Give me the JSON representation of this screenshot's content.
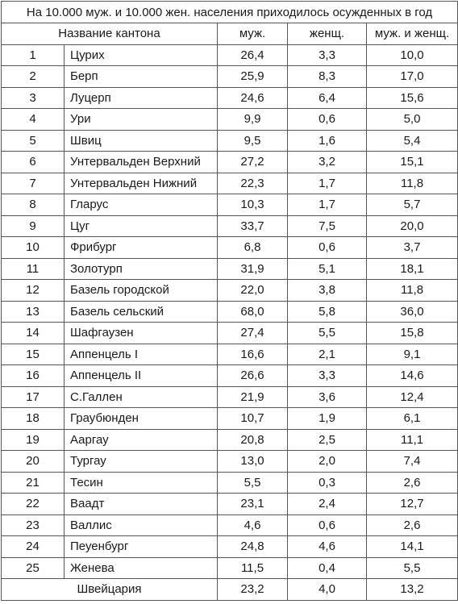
{
  "caption": "На 10.000 муж. и 10.000 жен. населения приходилось осужденных в год",
  "headers": {
    "canton": "Название кантона",
    "men": "муж.",
    "women": "женщ.",
    "both": "муж. и женщ."
  },
  "rows": [
    {
      "n": "1",
      "name": "Цурих",
      "men": "26,4",
      "women": "3,3",
      "both": "10,0"
    },
    {
      "n": "2",
      "name": "Берп",
      "men": "25,9",
      "women": "8,3",
      "both": "17,0"
    },
    {
      "n": "3",
      "name": "Луцерп",
      "men": "24,6",
      "women": "6,4",
      "both": "15,6"
    },
    {
      "n": "4",
      "name": "Ури",
      "men": "9,9",
      "women": "0,6",
      "both": "5,0"
    },
    {
      "n": "5",
      "name": "Швиц",
      "men": "9,5",
      "women": "1,6",
      "both": "5,4"
    },
    {
      "n": "6",
      "name": "Унтервальден Верхний",
      "men": "27,2",
      "women": "3,2",
      "both": "15,1"
    },
    {
      "n": "7",
      "name": "Унтервальден Нижний",
      "men": "22,3",
      "women": "1,7",
      "both": "11,8"
    },
    {
      "n": "8",
      "name": "Гларус",
      "men": "10,3",
      "women": "1,7",
      "both": "5,7"
    },
    {
      "n": "9",
      "name": "Цуг",
      "men": "33,7",
      "women": "7,5",
      "both": "20,0"
    },
    {
      "n": "10",
      "name": "Фрибург",
      "men": "6,8",
      "women": "0,6",
      "both": "3,7"
    },
    {
      "n": "11",
      "name": "Золотурп",
      "men": "31,9",
      "women": "5,1",
      "both": "18,1"
    },
    {
      "n": "12",
      "name": "Базель городской",
      "men": "22,0",
      "women": "3,8",
      "both": "11,8"
    },
    {
      "n": "13",
      "name": "Базель сельский",
      "men": "68,0",
      "women": "5,8",
      "both": "36,0"
    },
    {
      "n": "14",
      "name": "Шафгаузен",
      "men": "27,4",
      "women": "5,5",
      "both": "15,8"
    },
    {
      "n": "15",
      "name": "Аппенцель I",
      "men": "16,6",
      "women": "2,1",
      "both": "9,1"
    },
    {
      "n": "16",
      "name": "Аппенцель II",
      "men": "26,6",
      "women": "3,3",
      "both": "14,6"
    },
    {
      "n": "17",
      "name": "С.Галлен",
      "men": "21,9",
      "women": "3,6",
      "both": "12,4"
    },
    {
      "n": "18",
      "name": "Граубюнден",
      "men": "10,7",
      "women": "1,9",
      "both": "6,1"
    },
    {
      "n": "19",
      "name": "Ааргау",
      "men": "20,8",
      "women": "2,5",
      "both": "11,1"
    },
    {
      "n": "20",
      "name": "Тургау",
      "men": "13,0",
      "women": "2,0",
      "both": "7,4"
    },
    {
      "n": "21",
      "name": "Тесин",
      "men": "5,5",
      "women": "0,3",
      "both": "2,6"
    },
    {
      "n": "22",
      "name": "Ваадт",
      "men": "23,1",
      "women": "2,4",
      "both": "12,7"
    },
    {
      "n": "23",
      "name": "Валлис",
      "men": "4,6",
      "women": "0,6",
      "both": "2,6"
    },
    {
      "n": "24",
      "name": "Пеуенбург",
      "men": "24,8",
      "women": "4,6",
      "both": "14,1"
    },
    {
      "n": "25",
      "name": "Женева",
      "men": "11,5",
      "women": "0,4",
      "both": "5,5"
    }
  ],
  "total": {
    "label": "Швейцария",
    "men": "23,2",
    "women": "4,0",
    "both": "13,2"
  }
}
